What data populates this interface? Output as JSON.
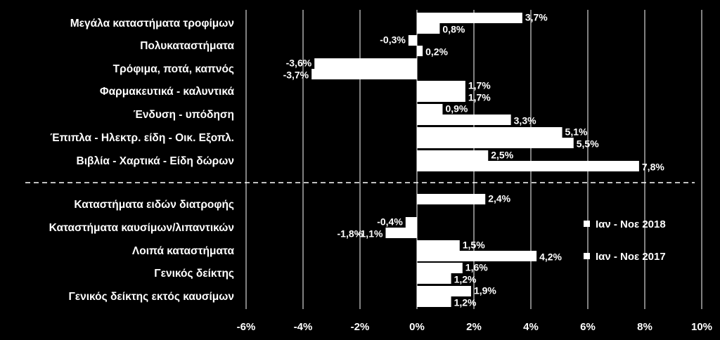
{
  "chart_data": {
    "type": "bar",
    "orientation": "horizontal",
    "categories": [
      "Μεγάλα καταστήματα τροφίμων",
      "Πολυκαταστήματα",
      "Τρόφιμα, ποτά, καπνός",
      "Φαρμακευτικά - καλυντικά",
      "Ένδυση - υπόδηση",
      "Έπιπλα - Ηλεκτρ. είδη - Οικ. Εξοπλ.",
      "Βιβλία - Χαρτικά - Είδη δώρων",
      "Καταστήματα ειδών διατροφής",
      "Καταστήματα καυσίμων/λιπαντικών",
      "Λοιπά καταστήματα",
      "Γενικός δείκτης",
      "Γενικός δείκτης εκτός καυσίμων"
    ],
    "series": [
      {
        "name": "Ιαν - Νοε 2018",
        "values": [
          3.7,
          -0.3,
          -3.6,
          1.7,
          0.9,
          5.1,
          2.5,
          2.4,
          -0.4,
          1.5,
          1.6,
          1.9
        ],
        "labels": [
          "3,7%",
          "-0,3%",
          "-3,6%",
          "1,7%",
          "0,9%",
          "5,1%",
          "2,5%",
          "2,4%",
          "-0,4%",
          "1,5%",
          "1,6%",
          "1,9%"
        ]
      },
      {
        "name": "Ιαν - Νοε 2017",
        "values": [
          0.8,
          0.2,
          -3.7,
          1.7,
          3.3,
          5.5,
          7.8,
          null,
          -1.1,
          4.2,
          1.2,
          1.2
        ],
        "labels": [
          "0,8%",
          "0,2%",
          "-3,7%",
          "1,7%",
          "3,3%",
          "5,5%",
          "7,8%",
          "",
          "-1,1%",
          "4,2%",
          "1,2%",
          "1,2%"
        ]
      }
    ],
    "extra_labels": [
      {
        "category": "Καταστήματα καυσίμων/λιπαντικών",
        "text": "-1,8%",
        "value": -1.8
      }
    ],
    "x_ticks": [
      -6,
      -4,
      -2,
      0,
      2,
      4,
      6,
      8,
      10
    ],
    "x_tick_labels": [
      "-6%",
      "-4%",
      "-2%",
      "0%",
      "2%",
      "4%",
      "6%",
      "8%",
      "10%"
    ],
    "xlim": [
      -6,
      10
    ],
    "grid": true,
    "legend": "right",
    "separator_after_index": 6
  },
  "colors": {
    "background": "#000000",
    "bar": "#ffffff",
    "grid": "#ffffff",
    "text": "#ffffff"
  }
}
